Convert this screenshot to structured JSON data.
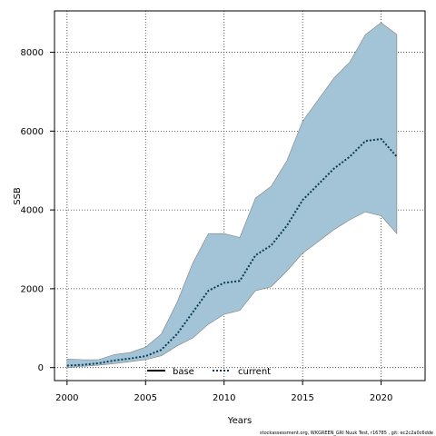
{
  "chart_data": {
    "type": "line",
    "xlabel": "Years",
    "ylabel": "SSB",
    "xlim": [
      1999.2,
      2022.8
    ],
    "ylim": [
      -330,
      9050
    ],
    "x_ticks": [
      2000,
      2005,
      2010,
      2015,
      2020
    ],
    "y_ticks": [
      0,
      2000,
      4000,
      6000,
      8000
    ],
    "grid": true,
    "legend_position": "bottom-center",
    "colors": {
      "band": "#a3c4d6",
      "band_edge": "#808080",
      "current": "#0b3b52",
      "base": "#000000"
    },
    "series": [
      {
        "name": "base",
        "style": "solid",
        "x": [],
        "values": []
      },
      {
        "name": "current",
        "style": "dotted",
        "x": [
          2000,
          2001,
          2002,
          2003,
          2004,
          2005,
          2006,
          2007,
          2008,
          2009,
          2010,
          2011,
          2012,
          2013,
          2014,
          2015,
          2016,
          2017,
          2018,
          2019,
          2020,
          2021
        ],
        "values": [
          50,
          70,
          110,
          180,
          230,
          290,
          450,
          850,
          1400,
          1950,
          2150,
          2200,
          2850,
          3100,
          3600,
          4250,
          4650,
          5050,
          5350,
          5750,
          5800,
          5350
        ],
        "lower": [
          0,
          30,
          60,
          100,
          150,
          200,
          300,
          550,
          750,
          1100,
          1350,
          1450,
          1950,
          2050,
          2450,
          2900,
          3200,
          3500,
          3750,
          3950,
          3850,
          3400
        ],
        "upper": [
          220,
          200,
          200,
          330,
          380,
          520,
          850,
          1650,
          2650,
          3400,
          3400,
          3300,
          4300,
          4600,
          5250,
          6250,
          6800,
          7350,
          7750,
          8450,
          8750,
          8450
        ]
      }
    ]
  },
  "footer": "stockassessment.org, WKGREEN_GRI Nuuk Test, r16785 , git: ec2c2a0c6dde"
}
